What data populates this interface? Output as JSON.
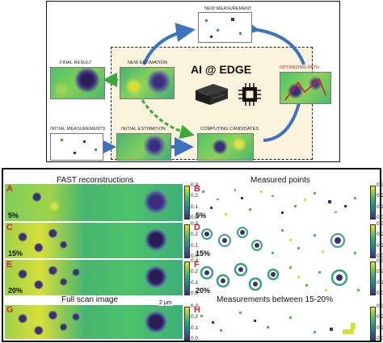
{
  "top": {
    "center_title": "AI @ EDGE",
    "labels": {
      "new_measurement": "NEW MEASUREMENT",
      "final_result": "FINAL RESULT",
      "new_estimation": "NEW ESTIMATION",
      "optimizing_path": "OPTIMIZING PATH",
      "initial_measurements": "INITIAL MEASUREMENTS",
      "initial_estimation": "INITIAL ESTIMATION",
      "computing_candidates": "COMPUTING CANDIDATES"
    }
  },
  "bottom": {
    "titles": {
      "fast": "FAST reconstructions",
      "measured": "Measured points",
      "full_scan": "Full scan image",
      "between": "Measurements between 15-20%"
    },
    "panel_letters": [
      "A",
      "B",
      "C",
      "D",
      "E",
      "F",
      "G",
      "H"
    ],
    "percents": [
      "5%",
      "5%",
      "15%",
      "15%",
      "20%",
      "20%"
    ],
    "scale_bar": "2 μm",
    "colorbar_ticks": [
      "0.3",
      "0.2",
      "0.1",
      "0.0"
    ]
  },
  "colors": {
    "bg_high": "#4ec26a",
    "bg_mid": "#d8df3a",
    "blob": "#3b2f7c",
    "arrow_blue": "#3c72c2",
    "arrow_green": "#3aaa3a",
    "accent_red": "#e0202a",
    "panel_fill": "#fcf3dd"
  }
}
